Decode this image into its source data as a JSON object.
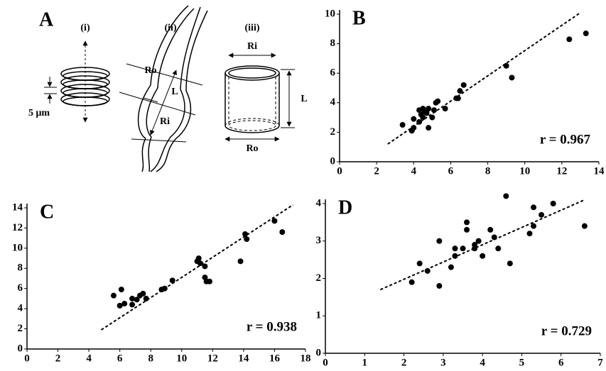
{
  "diagram": {
    "label": "A",
    "parts": [
      "(i)",
      "(ii)",
      "(iii)"
    ],
    "scale": "5 μm",
    "ii_labels": [
      "Ro",
      "L",
      "Ri"
    ],
    "iii_labels": [
      "Ri",
      "L",
      "Ro"
    ]
  },
  "chart_data": [
    {
      "type": "scatter",
      "title": "B",
      "annotation": "r = 0.967",
      "color": "#000000",
      "x": [
        3.4,
        3.9,
        4.0,
        4.0,
        4.3,
        4.3,
        4.4,
        4.5,
        4.5,
        4.6,
        4.7,
        4.8,
        4.8,
        5.0,
        5.1,
        5.2,
        5.3,
        5.7,
        6.3,
        6.4,
        6.5,
        6.7,
        9.0,
        9.3,
        12.4,
        13.3
      ],
      "values": [
        2.5,
        2.1,
        2.3,
        2.9,
        2.7,
        3.5,
        3.2,
        3.6,
        3.0,
        3.4,
        3.3,
        2.3,
        3.6,
        3.0,
        3.5,
        4.0,
        4.1,
        3.6,
        4.3,
        4.3,
        4.8,
        5.2,
        6.5,
        5.7,
        8.3,
        8.7
      ],
      "trend_line": {
        "x": [
          2.6,
          13.0
        ],
        "values": [
          1.2,
          10.1
        ]
      },
      "xlim": [
        0,
        14
      ],
      "ylim": [
        0,
        10
      ],
      "xticks": [
        0,
        2,
        4,
        6,
        8,
        10,
        12,
        14
      ],
      "yticks": [
        0,
        2,
        4,
        6,
        8,
        10
      ]
    },
    {
      "type": "scatter",
      "title": "C",
      "annotation": "r = 0.938",
      "color": "#000000",
      "x": [
        5.6,
        6.0,
        6.1,
        6.3,
        6.8,
        6.8,
        7.1,
        7.3,
        7.5,
        7.7,
        8.7,
        8.9,
        9.4,
        11.0,
        11.1,
        11.2,
        11.5,
        11.5,
        11.6,
        11.8,
        13.8,
        14.1,
        14.2,
        16.0,
        16.5
      ],
      "values": [
        5.3,
        4.3,
        5.9,
        4.5,
        4.4,
        5.0,
        4.9,
        5.3,
        5.5,
        5.0,
        5.9,
        6.0,
        6.8,
        8.7,
        9.0,
        8.5,
        8.2,
        7.1,
        6.7,
        6.7,
        8.7,
        11.4,
        10.9,
        12.7,
        11.6
      ],
      "trend_line": {
        "x": [
          4.8,
          17.2
        ],
        "values": [
          1.9,
          14.3
        ]
      },
      "xlim": [
        0,
        18
      ],
      "ylim": [
        0,
        14
      ],
      "xticks": [
        0,
        2,
        4,
        6,
        8,
        10,
        12,
        14,
        16,
        18
      ],
      "yticks": [
        0,
        2,
        4,
        6,
        8,
        10,
        12,
        14
      ]
    },
    {
      "type": "scatter",
      "title": "D",
      "annotation": "r = 0.729",
      "color": "#000000",
      "x": [
        2.2,
        2.4,
        2.6,
        2.9,
        2.9,
        3.2,
        3.3,
        3.3,
        3.5,
        3.6,
        3.6,
        3.8,
        3.8,
        3.9,
        4.0,
        4.2,
        4.3,
        4.4,
        4.6,
        4.7,
        5.2,
        5.3,
        5.3,
        5.5,
        5.8,
        6.6
      ],
      "values": [
        1.9,
        2.4,
        2.2,
        1.8,
        3.0,
        2.3,
        2.6,
        2.8,
        2.8,
        3.5,
        3.3,
        2.8,
        2.9,
        3.0,
        2.6,
        3.3,
        3.1,
        2.8,
        4.2,
        2.4,
        3.2,
        3.4,
        3.9,
        3.7,
        4.0,
        3.4
      ],
      "trend_line": {
        "x": [
          1.4,
          6.6
        ],
        "values": [
          1.7,
          4.1
        ]
      },
      "xlim": [
        0,
        7
      ],
      "ylim": [
        0,
        4
      ],
      "xticks": [
        0,
        1,
        2,
        3,
        4,
        5,
        6,
        7
      ],
      "yticks": [
        0,
        1,
        2,
        3,
        4
      ]
    }
  ]
}
